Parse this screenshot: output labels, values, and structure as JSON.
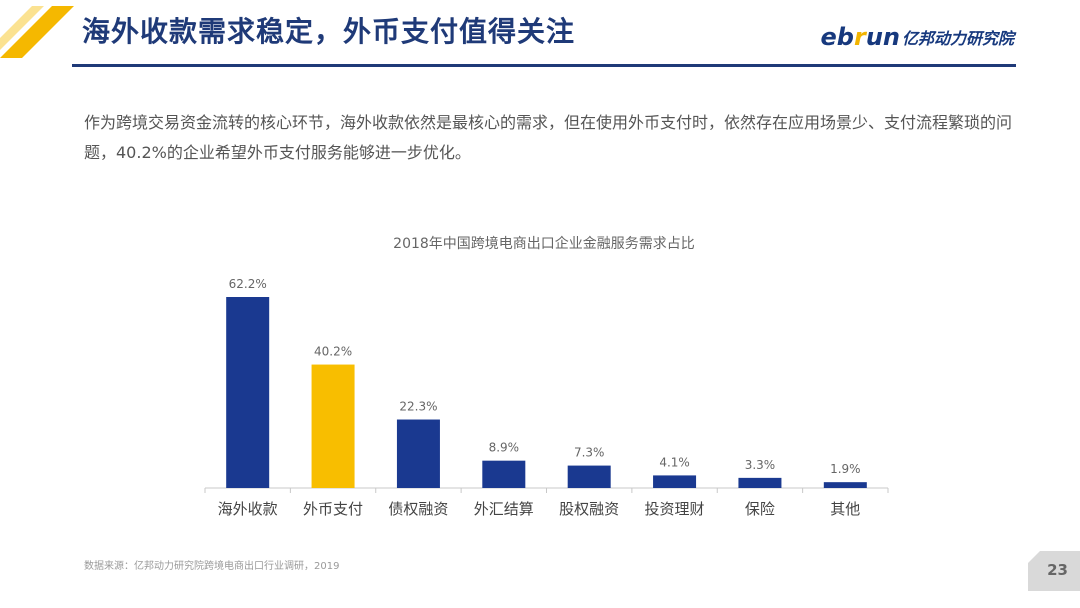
{
  "header": {
    "title": "海外收款需求稳定，外币支付值得关注",
    "logo_latin_prefix": "eb",
    "logo_latin_accent": "r",
    "logo_latin_suffix": "un",
    "logo_cn": "亿邦动力研究院"
  },
  "intro": "作为跨境交易资金流转的核心环节，海外收款依然是最核心的需求，但在使用外币支付时，依然存在应用场景少、支付流程繁琐的问题，40.2%的企业希望外币支付服务能够进一步优化。",
  "colors": {
    "primary": "#1a3990",
    "highlight": "#f8be00",
    "title": "#1f3a78",
    "accent_gold": "#f5b800"
  },
  "chart_data": {
    "type": "bar",
    "title": "2018年中国跨境电商出口企业金融服务需求占比",
    "categories": [
      "海外收款",
      "外币支付",
      "债权融资",
      "外汇结算",
      "股权融资",
      "投资理财",
      "保险",
      "其他"
    ],
    "values": [
      62.2,
      40.2,
      22.3,
      8.9,
      7.3,
      4.1,
      3.3,
      1.9
    ],
    "value_labels": [
      "62.2%",
      "40.2%",
      "22.3%",
      "8.9%",
      "7.3%",
      "4.1%",
      "3.3%",
      "1.9%"
    ],
    "highlight_index": 1,
    "unit": "%",
    "ylim": [
      0,
      62.2
    ],
    "grid": false,
    "legend": "none"
  },
  "footer": {
    "source": "数据来源：亿邦动力研究院跨境电商出口行业调研，2019",
    "page_number": "23"
  }
}
